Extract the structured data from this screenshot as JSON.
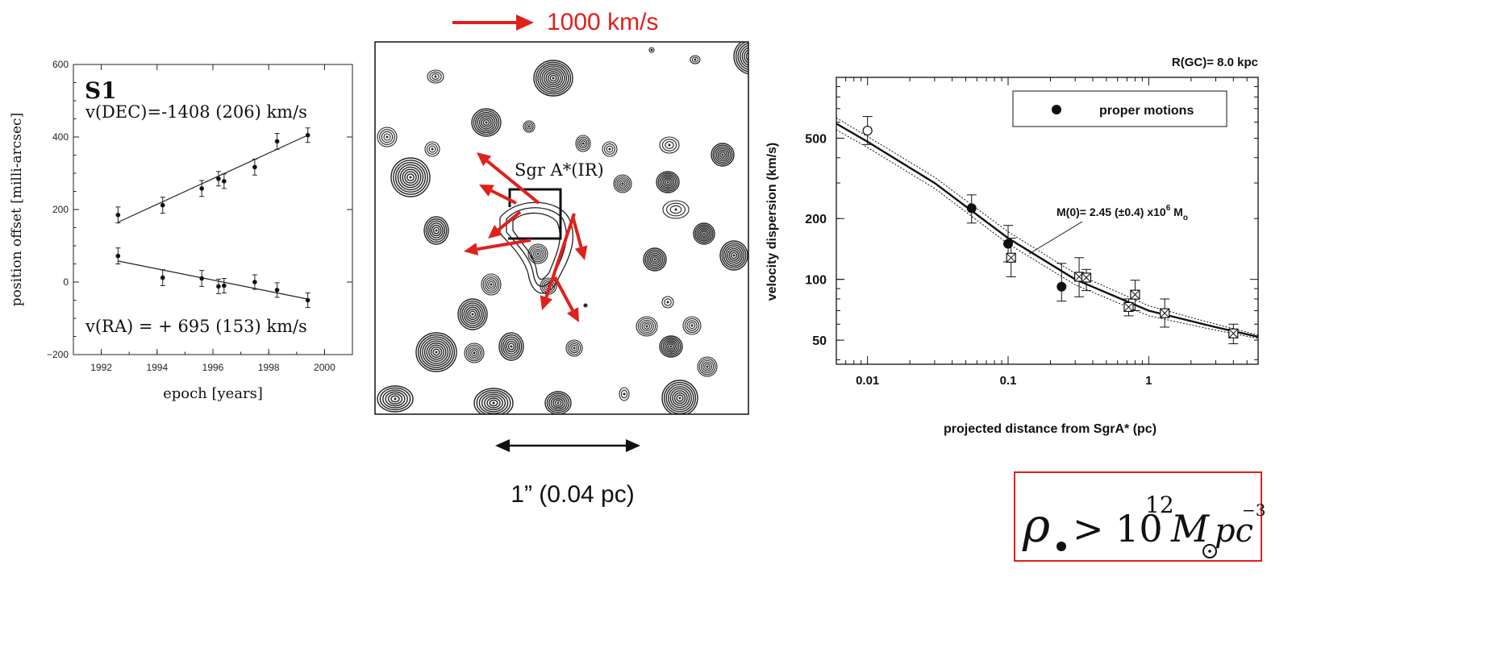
{
  "panels": {
    "left": {
      "chart_data": {
        "type": "scatter",
        "title": "S1",
        "xlabel": "epoch [years]",
        "ylabel": "position offset [milli-arcsec]",
        "xlim": [
          1991,
          2001
        ],
        "ylim": [
          -200,
          600
        ],
        "xticks": [
          1992,
          1994,
          1996,
          1998,
          2000
        ],
        "yticks": [
          -200,
          0,
          200,
          400,
          600
        ],
        "series": [
          {
            "label": "v(DEC)=-1408 (206) km/s",
            "points": [
              {
                "x": 1992.6,
                "y": 185,
                "err": 22
              },
              {
                "x": 1994.2,
                "y": 212,
                "err": 22
              },
              {
                "x": 1995.6,
                "y": 258,
                "err": 22
              },
              {
                "x": 1996.2,
                "y": 285,
                "err": 20
              },
              {
                "x": 1996.4,
                "y": 278,
                "err": 20
              },
              {
                "x": 1997.5,
                "y": 317,
                "err": 22
              },
              {
                "x": 1998.3,
                "y": 388,
                "err": 22
              },
              {
                "x": 1999.4,
                "y": 405,
                "err": 20
              }
            ],
            "fit": [
              [
                1992.6,
                165
              ],
              [
                1999.4,
                405
              ]
            ]
          },
          {
            "label": "v(RA)   = + 695 (153) km/s",
            "points": [
              {
                "x": 1992.6,
                "y": 72,
                "err": 22
              },
              {
                "x": 1994.2,
                "y": 12,
                "err": 22
              },
              {
                "x": 1995.6,
                "y": 10,
                "err": 22
              },
              {
                "x": 1996.2,
                "y": -12,
                "err": 20
              },
              {
                "x": 1996.4,
                "y": -10,
                "err": 20
              },
              {
                "x": 1997.5,
                "y": 0,
                "err": 20
              },
              {
                "x": 1998.3,
                "y": -22,
                "err": 20
              },
              {
                "x": 1999.4,
                "y": -50,
                "err": 20
              }
            ],
            "fit": [
              [
                1992.6,
                58
              ],
              [
                1999.4,
                -47
              ]
            ]
          }
        ]
      }
    },
    "middle": {
      "scale_velocity": "1000 km/s",
      "scale_distance": "1” (0.04 pc)",
      "source_label": "Sgr A*(IR)"
    },
    "right": {
      "chart_data": {
        "type": "scatter",
        "title": "R(GC)= 8.0 kpc",
        "xlabel": "projected distance from SgrA* (pc)",
        "ylabel": "velocity dispersion (km/s)",
        "xscale": "log",
        "yscale": "log",
        "xlim": [
          0.006,
          6
        ],
        "ylim": [
          38,
          1000
        ],
        "xticks": [
          0.01,
          0.1,
          1
        ],
        "yticks": [
          50,
          100,
          200,
          500
        ],
        "legend": {
          "label": "proper motions",
          "placement": "top-right"
        },
        "annotation": "M(0)= 2.45 (±0.4) x10",
        "annotation_exp": "6",
        "annotation_sub": "o",
        "filled_points": [
          {
            "x": 0.055,
            "y": 225,
            "lo": 190,
            "hi": 262
          },
          {
            "x": 0.1,
            "y": 150,
            "lo": 122,
            "hi": 185
          },
          {
            "x": 0.24,
            "y": 92,
            "lo": 78,
            "hi": 120
          }
        ],
        "open_points": [
          {
            "x": 0.01,
            "y": 545,
            "lo": 465,
            "hi": 640
          }
        ],
        "boxed_points": [
          {
            "x": 0.105,
            "y": 128,
            "lo": 103,
            "hi": 160
          },
          {
            "x": 0.32,
            "y": 103,
            "lo": 82,
            "hi": 128
          },
          {
            "x": 0.36,
            "y": 102,
            "lo": 88,
            "hi": 112
          },
          {
            "x": 0.72,
            "y": 73,
            "lo": 66,
            "hi": 80
          },
          {
            "x": 0.8,
            "y": 84,
            "lo": 70,
            "hi": 99
          },
          {
            "x": 1.3,
            "y": 68,
            "lo": 58,
            "hi": 80
          },
          {
            "x": 4.0,
            "y": 54,
            "lo": 48,
            "hi": 60
          }
        ],
        "model_curves": [
          {
            "style": "solid",
            "points": [
              [
                0.006,
                590
              ],
              [
                0.01,
                480
              ],
              [
                0.03,
                300
              ],
              [
                0.1,
                160
              ],
              [
                0.3,
                100
              ],
              [
                1,
                70
              ],
              [
                3,
                58
              ],
              [
                6,
                52
              ]
            ]
          },
          {
            "style": "dotted-upper",
            "points": [
              [
                0.006,
                630
              ],
              [
                0.01,
                510
              ],
              [
                0.03,
                320
              ],
              [
                0.1,
                172
              ],
              [
                0.3,
                107
              ],
              [
                1,
                74
              ],
              [
                3,
                60
              ],
              [
                6,
                53
              ]
            ]
          },
          {
            "style": "dotted-lower",
            "points": [
              [
                0.006,
                550
              ],
              [
                0.01,
                450
              ],
              [
                0.03,
                282
              ],
              [
                0.1,
                150
              ],
              [
                0.3,
                94
              ],
              [
                1,
                66
              ],
              [
                3,
                56
              ],
              [
                6,
                51
              ]
            ]
          }
        ]
      },
      "formula": {
        "symbol": "ρ",
        "relation": "> 10",
        "exponent": "12",
        "mass": "M",
        "unit": "pc",
        "unit_exp": "−3"
      }
    }
  }
}
